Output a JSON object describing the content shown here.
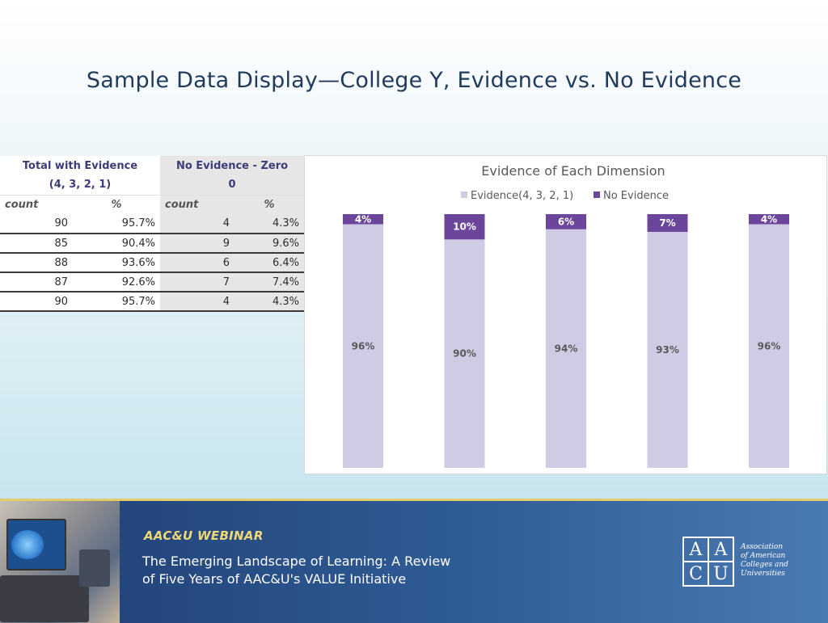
{
  "slide": {
    "title": "Sample Data Display—College Y, Evidence vs. No Evidence"
  },
  "table": {
    "header_evidence": "Total with Evidence",
    "header_evidence_sub": "(4, 3, 2, 1)",
    "header_no_evidence": "No Evidence - Zero",
    "header_no_evidence_sub": "0",
    "col_count": "count",
    "col_pct": "%",
    "rows": [
      {
        "ev_count": "90",
        "ev_pct": "95.7%",
        "ne_count": "4",
        "ne_pct": "4.3%"
      },
      {
        "ev_count": "85",
        "ev_pct": "90.4%",
        "ne_count": "9",
        "ne_pct": "9.6%"
      },
      {
        "ev_count": "88",
        "ev_pct": "93.6%",
        "ne_count": "6",
        "ne_pct": "6.4%"
      },
      {
        "ev_count": "87",
        "ev_pct": "92.6%",
        "ne_count": "7",
        "ne_pct": "7.4%"
      },
      {
        "ev_count": "90",
        "ev_pct": "95.7%",
        "ne_count": "4",
        "ne_pct": "4.3%"
      }
    ]
  },
  "chart_data": {
    "type": "bar",
    "stacked": true,
    "title": "Evidence of Each Dimension",
    "legend_position": "top",
    "grid": false,
    "ylim": [
      0,
      100
    ],
    "categories": [
      "",
      "",
      "",
      "",
      ""
    ],
    "series": [
      {
        "name": "Evidence(4, 3, 2, 1)",
        "values": [
          96,
          90,
          94,
          93,
          96
        ],
        "labels": [
          "96%",
          "90%",
          "94%",
          "93%",
          "96%"
        ],
        "color": "#cfcbe5"
      },
      {
        "name": "No Evidence",
        "values": [
          4,
          10,
          6,
          7,
          4
        ],
        "labels": [
          "4%",
          "10%",
          "6%",
          "7%",
          "4%"
        ],
        "color": "#6b469b"
      }
    ]
  },
  "footer": {
    "webinar_label": "AAC&U WEBINAR",
    "line1": "The Emerging Landscape of Learning: A Review",
    "line2": "of Five Years of AAC&U's VALUE Initiative",
    "logo_letters": [
      "A",
      "A",
      "C",
      "U"
    ],
    "org_line1": "Association",
    "org_line2": "of American",
    "org_line3": "Colleges and",
    "org_line4": "Universities",
    "bar_color": "#2a4f86",
    "accent_color": "#e3cd6a"
  }
}
